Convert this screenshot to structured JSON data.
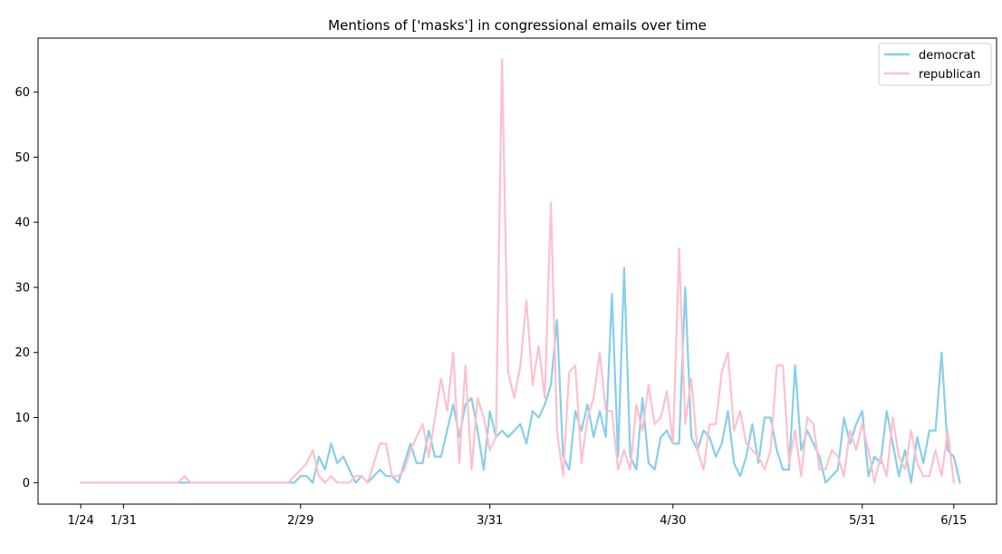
{
  "chart_data": {
    "type": "line",
    "title": "Mentions of ['masks'] in congressional emails over time",
    "xlabel": "",
    "ylabel": "",
    "xlim": [
      "2020-01-17",
      "2020-06-22"
    ],
    "ylim": [
      -3.3,
      68.3
    ],
    "x_ticks": [
      {
        "date": "2020-01-24",
        "label": "1/24"
      },
      {
        "date": "2020-01-31",
        "label": "1/31"
      },
      {
        "date": "2020-02-29",
        "label": "2/29"
      },
      {
        "date": "2020-03-31",
        "label": "3/31"
      },
      {
        "date": "2020-04-30",
        "label": "4/30"
      },
      {
        "date": "2020-05-31",
        "label": "5/31"
      },
      {
        "date": "2020-06-15",
        "label": "6/15"
      }
    ],
    "y_ticks": [
      0,
      10,
      20,
      30,
      40,
      50,
      60
    ],
    "grid": false,
    "legend_position": "top-right",
    "start_date": "2020-01-24",
    "series": [
      {
        "name": "democrat",
        "color": "#87CEEB",
        "values": [
          0,
          0,
          0,
          0,
          0,
          0,
          0,
          0,
          0,
          0,
          0,
          0,
          0,
          0,
          0,
          0,
          0,
          0,
          0,
          0,
          0,
          0,
          0,
          0,
          0,
          0,
          0,
          0,
          0,
          0,
          0,
          0,
          0,
          0,
          0,
          0,
          1,
          1,
          0,
          4,
          2,
          6,
          3,
          4,
          2,
          0,
          1,
          0,
          1,
          2,
          1,
          1,
          0,
          3,
          6,
          3,
          3,
          8,
          4,
          4,
          8,
          12,
          7,
          12,
          13,
          8,
          2,
          11,
          7,
          8,
          7,
          8,
          9,
          6,
          11,
          10,
          12,
          15,
          25,
          4,
          2,
          11,
          8,
          12,
          7,
          11,
          7,
          29,
          4,
          33,
          4,
          2,
          13,
          3,
          2,
          7,
          8,
          6,
          6,
          30,
          7,
          5,
          8,
          7,
          4,
          6,
          11,
          3,
          1,
          4,
          9,
          3,
          10,
          10,
          5,
          2,
          2,
          18,
          5,
          8,
          6,
          4,
          0,
          1,
          2,
          10,
          6,
          9,
          11,
          1,
          4,
          3,
          11,
          6,
          1,
          5,
          0,
          7,
          3,
          8,
          8,
          20,
          5,
          4,
          0
        ]
      },
      {
        "name": "republican",
        "color": "#FFC0CB",
        "values": [
          0,
          0,
          0,
          0,
          0,
          0,
          0,
          0,
          0,
          0,
          0,
          0,
          0,
          0,
          0,
          0,
          0,
          1,
          0,
          0,
          0,
          0,
          0,
          0,
          0,
          0,
          0,
          0,
          0,
          0,
          0,
          0,
          0,
          0,
          0,
          1,
          2,
          3,
          5,
          1,
          0,
          1,
          0,
          0,
          0,
          1,
          1,
          0,
          3,
          6,
          6,
          1,
          1,
          2,
          5,
          7,
          9,
          4,
          10,
          16,
          11,
          20,
          3,
          18,
          2,
          13,
          10,
          5,
          7,
          65,
          17,
          13,
          18,
          28,
          15,
          21,
          13,
          43,
          8,
          1,
          17,
          18,
          3,
          10,
          13,
          20,
          11,
          11,
          2,
          5,
          2,
          12,
          8,
          15,
          9,
          10,
          14,
          6,
          36,
          9,
          16,
          5,
          2,
          9,
          9,
          17,
          20,
          8,
          11,
          6,
          5,
          4,
          2,
          5,
          18,
          18,
          3,
          8,
          1,
          10,
          9,
          2,
          2,
          5,
          4,
          1,
          8,
          5,
          9,
          5,
          0,
          4,
          1,
          10,
          4,
          2,
          8,
          3,
          1,
          1,
          5,
          1,
          8,
          0
        ]
      }
    ]
  }
}
